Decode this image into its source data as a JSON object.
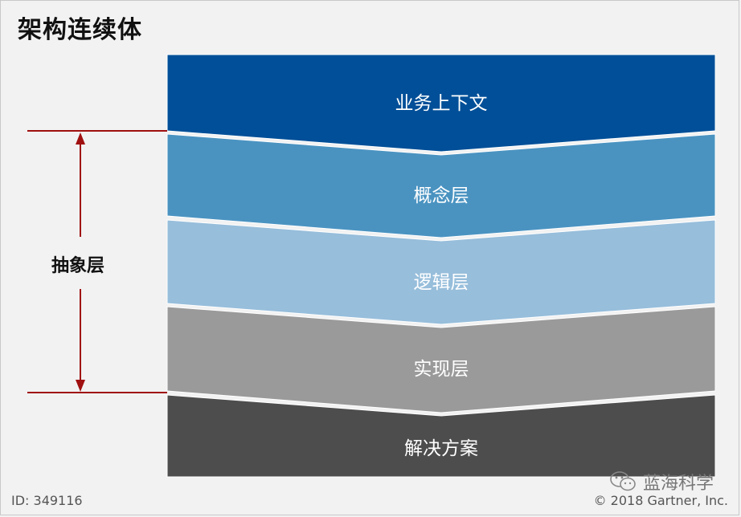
{
  "title": "架构连续体",
  "layers": [
    {
      "label": "业务上下文",
      "color": "#004f98"
    },
    {
      "label": "概念层",
      "color": "#4a93c1"
    },
    {
      "label": "逻辑层",
      "color": "#97bedb"
    },
    {
      "label": "实现层",
      "color": "#9a9a9a"
    },
    {
      "label": "解决方案",
      "color": "#4d4d4d"
    }
  ],
  "abstraction_label": "抽象层",
  "accent_color": "#a01010",
  "footer": {
    "id": "ID: 349116",
    "copyright": "© 2018 Gartner, Inc.",
    "watermark": "蓝海科学"
  }
}
